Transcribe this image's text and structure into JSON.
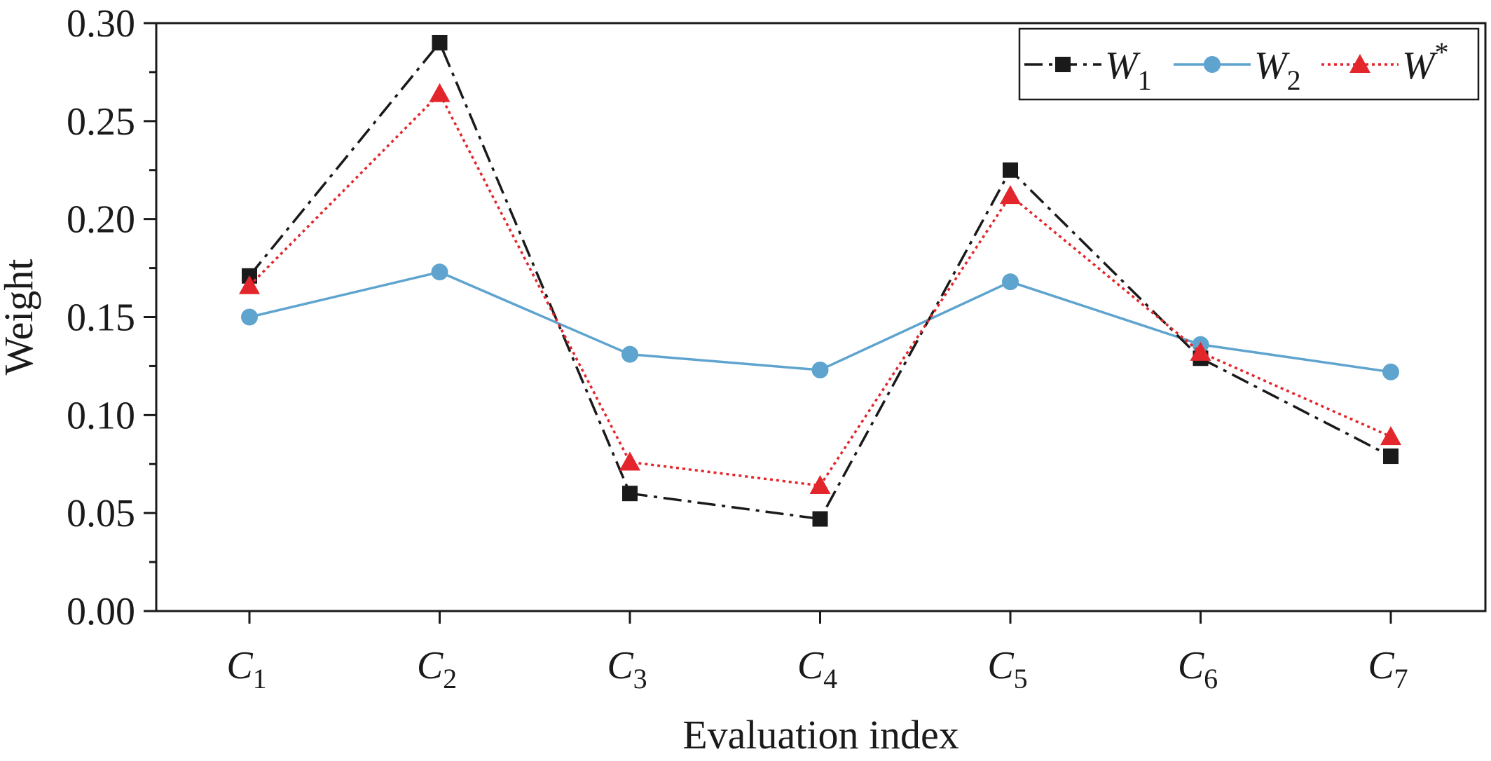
{
  "chart_data": {
    "type": "line",
    "xlabel": "Evaluation index",
    "ylabel": "Weight",
    "categories": [
      {
        "base": "C",
        "sub": "1"
      },
      {
        "base": "C",
        "sub": "2"
      },
      {
        "base": "C",
        "sub": "3"
      },
      {
        "base": "C",
        "sub": "4"
      },
      {
        "base": "C",
        "sub": "5"
      },
      {
        "base": "C",
        "sub": "6"
      },
      {
        "base": "C",
        "sub": "7"
      }
    ],
    "ylim": [
      0,
      0.3
    ],
    "yticks": [
      "0.00",
      "0.05",
      "0.10",
      "0.15",
      "0.20",
      "0.25",
      "0.30"
    ],
    "ytick_values": [
      0,
      0.05,
      0.1,
      0.15,
      0.2,
      0.25,
      0.3
    ],
    "grid": false,
    "legend_position": "top-right",
    "series": [
      {
        "name": "W1",
        "name_base": "W",
        "name_sup": "",
        "name_sub": "1",
        "values": [
          0.171,
          0.29,
          0.06,
          0.047,
          0.225,
          0.129,
          0.079
        ],
        "color": "#1a1a1a",
        "marker": "square",
        "dash": "dashdot"
      },
      {
        "name": "W2",
        "name_base": "W",
        "name_sup": "",
        "name_sub": "2",
        "values": [
          0.15,
          0.173,
          0.131,
          0.123,
          0.168,
          0.136,
          0.122
        ],
        "color": "#5ea4cf",
        "marker": "circle",
        "dash": "solid"
      },
      {
        "name": "W*",
        "name_base": "W",
        "name_sup": "*",
        "name_sub": "",
        "values": [
          0.166,
          0.264,
          0.076,
          0.064,
          0.212,
          0.132,
          0.089
        ],
        "color": "#e2262b",
        "marker": "triangle",
        "dash": "dotted"
      }
    ]
  }
}
